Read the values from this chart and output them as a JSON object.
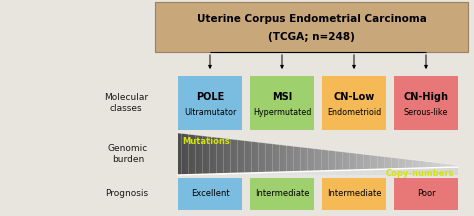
{
  "title_line1": "Uterine Corpus Endometrial Carcinoma",
  "title_line2": "(TCGA; n=248)",
  "title_box_color": "#c8a87a",
  "bg_color": "#e8e4de",
  "class_colors": [
    "#7bbde0",
    "#9ed06e",
    "#f5b955",
    "#e87878"
  ],
  "class_bold": [
    "POLE",
    "MSI",
    "CN-Low",
    "CN-High"
  ],
  "class_sub": [
    "Ultramutator",
    "Hypermutated",
    "Endometrioid",
    "Serous-like"
  ],
  "prognosis": [
    "Excellent",
    "Intermediate",
    "Intermediate",
    "Poor"
  ],
  "prognosis_colors": [
    "#7bbde0",
    "#9ed06e",
    "#f5b955",
    "#e87878"
  ],
  "mutations_label": "Mutations",
  "copynumbers_label": "Copy-numbers",
  "mutations_color": "#d4e600",
  "copynumbers_color": "#d4e600",
  "arrow_color": "#555555",
  "text_color": "#1a1a1a",
  "figw": 4.74,
  "figh": 2.16,
  "dpi": 100
}
